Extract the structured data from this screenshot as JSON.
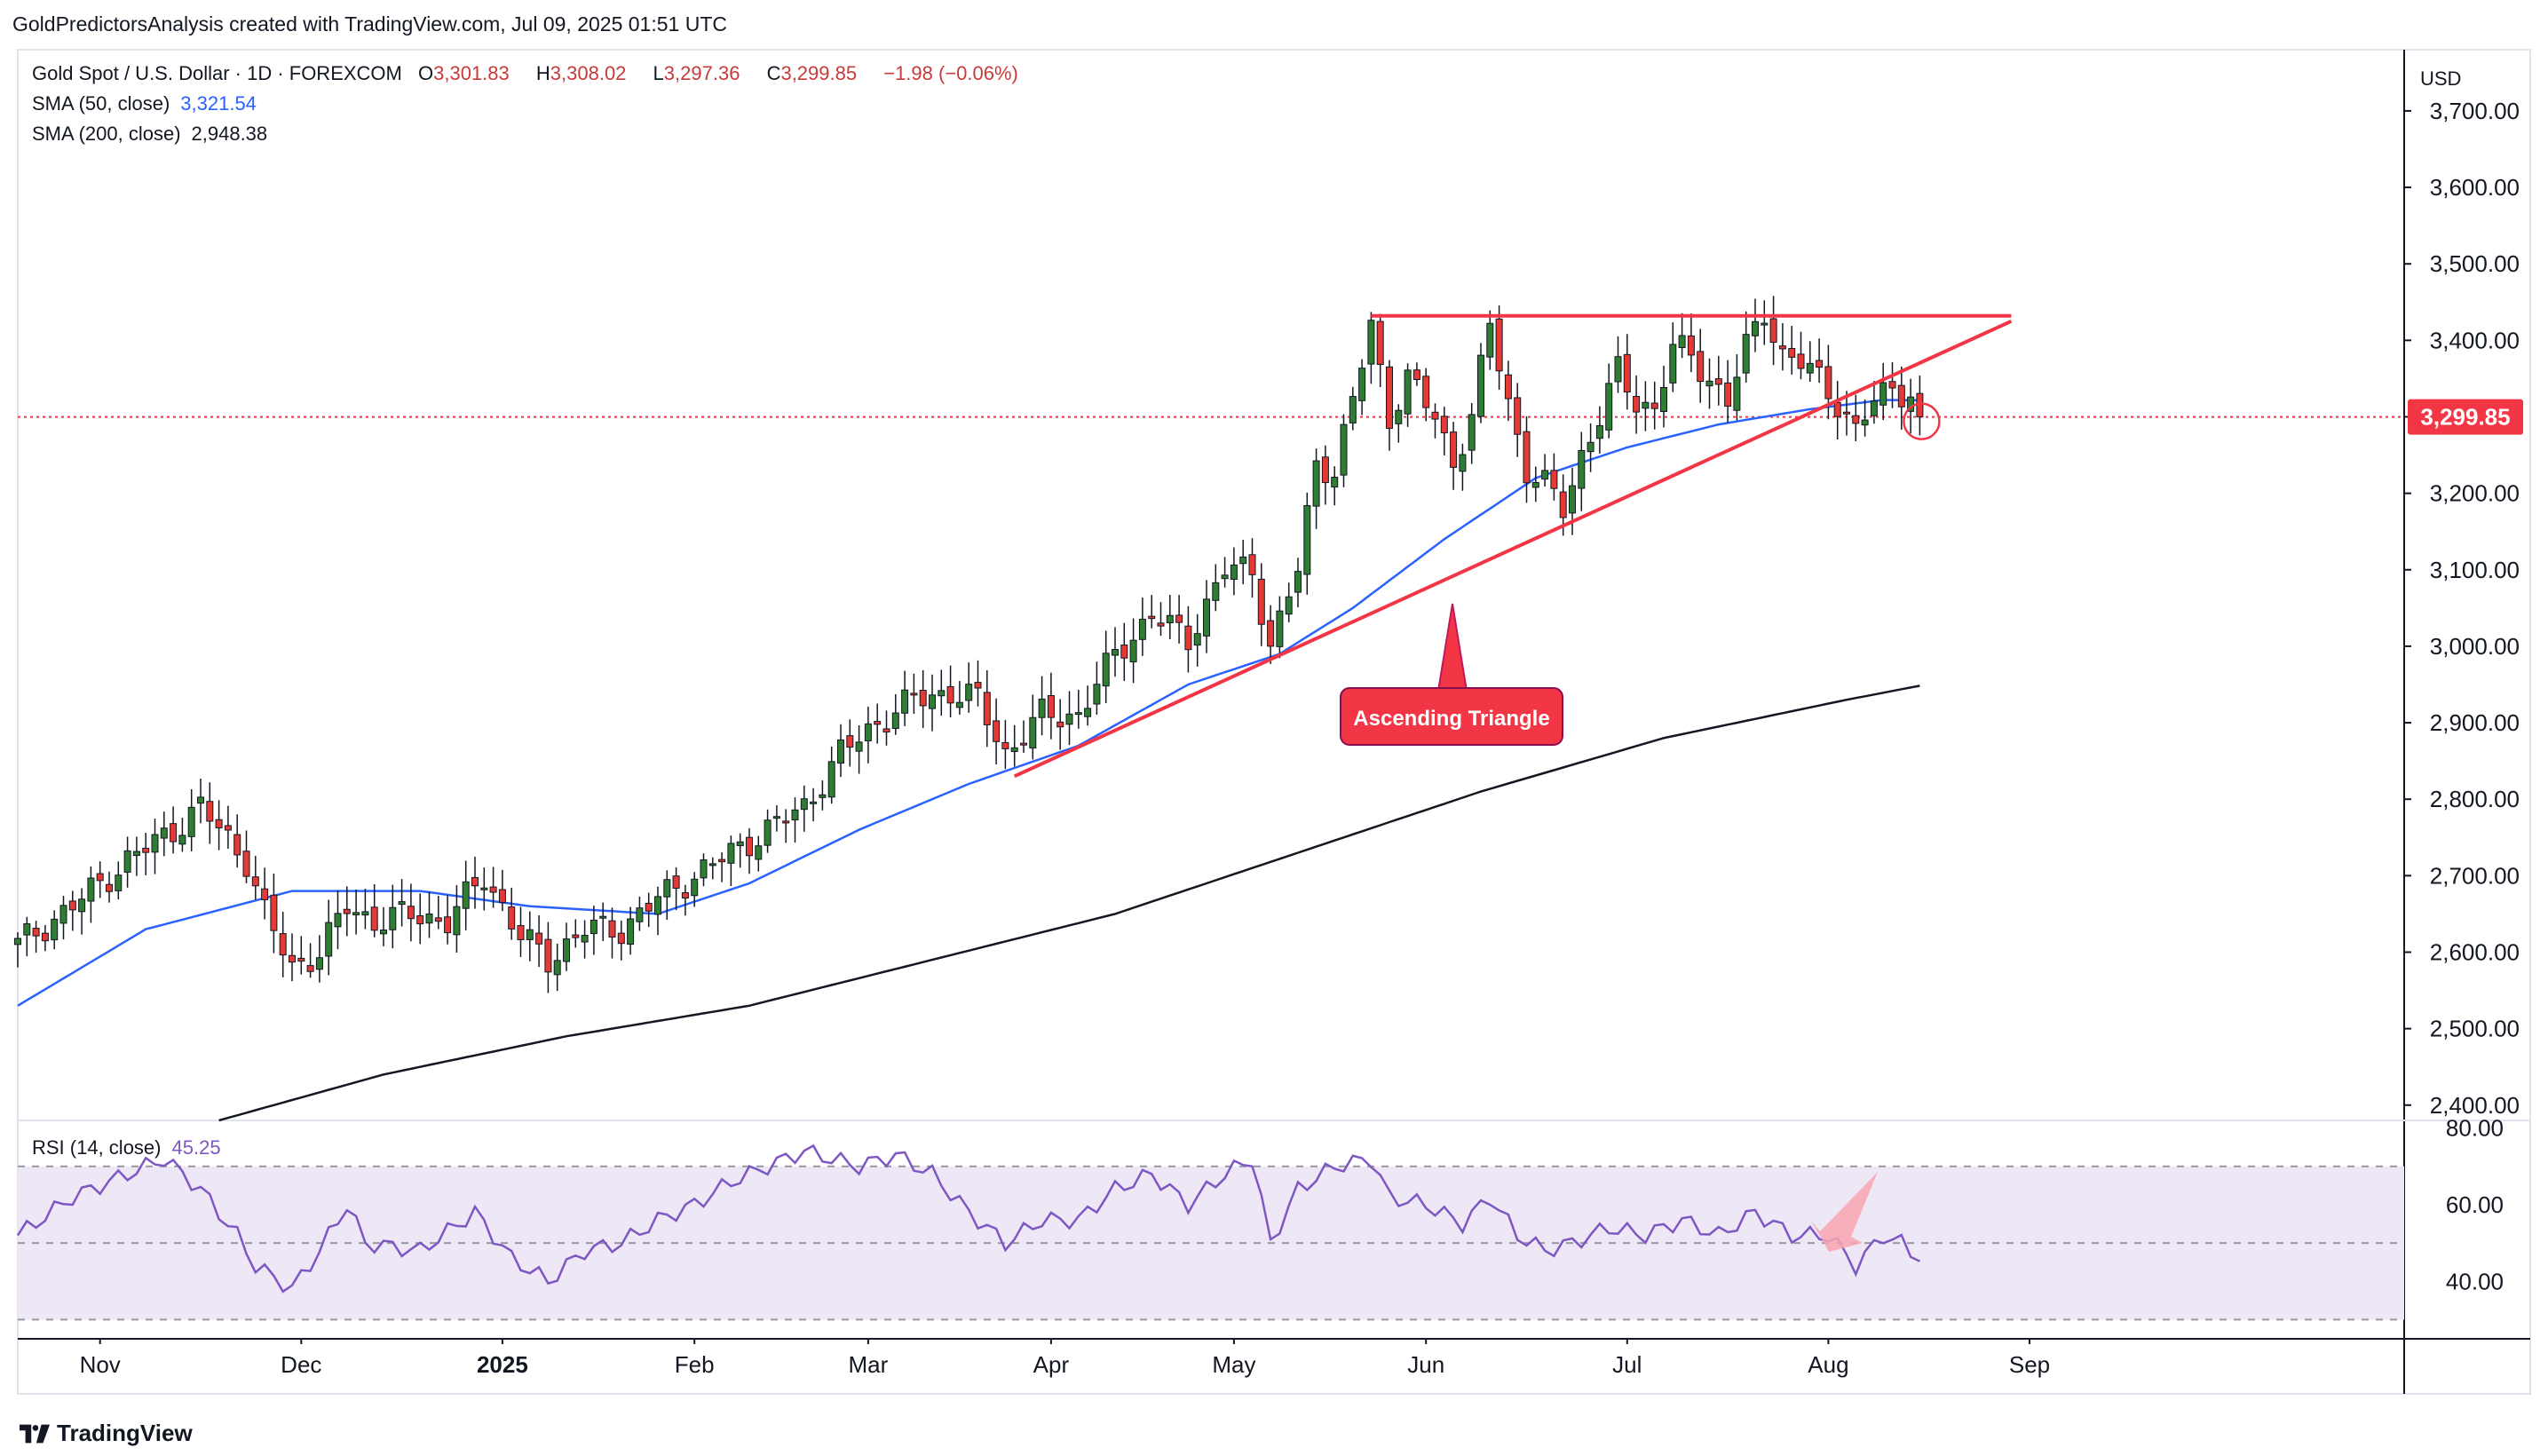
{
  "header": {
    "attribution": "GoldPredictorsAnalysis created with TradingView.com, Jul 09, 2025 01:51 UTC"
  },
  "legend": {
    "symbol": "Gold Spot / U.S. Dollar · 1D · FOREXCOM",
    "open_key": "O",
    "open": "3,301.83",
    "high_key": "H",
    "high": "3,308.02",
    "low_key": "L",
    "low": "3,297.36",
    "close_key": "C",
    "close": "3,299.85",
    "change": "−1.98 (−0.06%)",
    "sma50_label": "SMA (50, close)",
    "sma50_value": "3,321.54",
    "sma200_label": "SMA (200, close)",
    "sma200_value": "2,948.38",
    "rsi_label": "RSI (14, close)",
    "rsi_value": "45.25"
  },
  "price_axis": {
    "currency": "USD",
    "ticks": [
      "3,700.00",
      "3,600.00",
      "3,500.00",
      "3,400.00",
      "3,300.00",
      "3,200.00",
      "3,100.00",
      "3,000.00",
      "2,900.00",
      "2,800.00",
      "2,700.00",
      "2,600.00",
      "2,500.00",
      "2,400.00"
    ],
    "last_price_label": "3,299.85"
  },
  "rsi_axis": {
    "ticks": [
      "80.00",
      "60.00",
      "40.00"
    ]
  },
  "time_axis": {
    "labels": [
      "Nov",
      "Dec",
      "2025",
      "Feb",
      "Mar",
      "Apr",
      "May",
      "Jun",
      "Jul",
      "Aug",
      "Sep"
    ]
  },
  "annotation": {
    "label": "Ascending Triangle"
  },
  "footer": {
    "brand": "TradingView"
  },
  "colors": {
    "up": "#26a69a",
    "up_body": "#2e7d32",
    "down": "#e53935",
    "sma50": "#2962ff",
    "sma200": "#131722",
    "trend": "#f23645",
    "rsi_line": "#7e57c2",
    "rsi_band": "#ede7f6",
    "last_price": "#f23645"
  },
  "chart_data": {
    "type": "candlestick",
    "title": "Gold Spot / U.S. Dollar · 1D · FOREXCOM",
    "ylim": [
      2380,
      3780
    ],
    "y_scale": "linear",
    "last_price": 3299.85,
    "x_months": [
      "Nov",
      "Dec",
      "2025",
      "Feb",
      "Mar",
      "Apr",
      "May",
      "Jun",
      "Jul",
      "Aug",
      "Sep"
    ],
    "price_keypoints": [
      {
        "t": 0,
        "p": 2610
      },
      {
        "t": 6,
        "p": 2660
      },
      {
        "t": 12,
        "p": 2720
      },
      {
        "t": 17,
        "p": 2760
      },
      {
        "t": 20,
        "p": 2790
      },
      {
        "t": 25,
        "p": 2720
      },
      {
        "t": 27,
        "p": 2650
      },
      {
        "t": 30,
        "p": 2580
      },
      {
        "t": 33,
        "p": 2600
      },
      {
        "t": 36,
        "p": 2660
      },
      {
        "t": 39,
        "p": 2640
      },
      {
        "t": 43,
        "p": 2650
      },
      {
        "t": 47,
        "p": 2640
      },
      {
        "t": 51,
        "p": 2700
      },
      {
        "t": 55,
        "p": 2620
      },
      {
        "t": 58,
        "p": 2590
      },
      {
        "t": 62,
        "p": 2630
      },
      {
        "t": 66,
        "p": 2630
      },
      {
        "t": 70,
        "p": 2670
      },
      {
        "t": 74,
        "p": 2700
      },
      {
        "t": 78,
        "p": 2730
      },
      {
        "t": 82,
        "p": 2760
      },
      {
        "t": 86,
        "p": 2790
      },
      {
        "t": 90,
        "p": 2860
      },
      {
        "t": 94,
        "p": 2900
      },
      {
        "t": 98,
        "p": 2930
      },
      {
        "t": 102,
        "p": 2940
      },
      {
        "t": 105,
        "p": 2930
      },
      {
        "t": 108,
        "p": 2860
      },
      {
        "t": 112,
        "p": 2910
      },
      {
        "t": 116,
        "p": 2910
      },
      {
        "t": 120,
        "p": 2990
      },
      {
        "t": 124,
        "p": 3040
      },
      {
        "t": 128,
        "p": 3010
      },
      {
        "t": 132,
        "p": 3100
      },
      {
        "t": 135,
        "p": 3100
      },
      {
        "t": 137,
        "p": 3000
      },
      {
        "t": 140,
        "p": 3100
      },
      {
        "t": 142,
        "p": 3240
      },
      {
        "t": 144,
        "p": 3230
      },
      {
        "t": 146,
        "p": 3320
      },
      {
        "t": 148,
        "p": 3420
      },
      {
        "t": 150,
        "p": 3300
      },
      {
        "t": 152,
        "p": 3350
      },
      {
        "t": 155,
        "p": 3300
      },
      {
        "t": 157,
        "p": 3240
      },
      {
        "t": 159,
        "p": 3300
      },
      {
        "t": 161,
        "p": 3420
      },
      {
        "t": 163,
        "p": 3320
      },
      {
        "t": 165,
        "p": 3230
      },
      {
        "t": 167,
        "p": 3210
      },
      {
        "t": 169,
        "p": 3180
      },
      {
        "t": 171,
        "p": 3250
      },
      {
        "t": 173,
        "p": 3300
      },
      {
        "t": 175,
        "p": 3360
      },
      {
        "t": 177,
        "p": 3320
      },
      {
        "t": 179,
        "p": 3310
      },
      {
        "t": 181,
        "p": 3390
      },
      {
        "t": 183,
        "p": 3380
      },
      {
        "t": 185,
        "p": 3350
      },
      {
        "t": 187,
        "p": 3320
      },
      {
        "t": 189,
        "p": 3390
      },
      {
        "t": 191,
        "p": 3440
      },
      {
        "t": 193,
        "p": 3380
      },
      {
        "t": 195,
        "p": 3370
      },
      {
        "t": 197,
        "p": 3350
      },
      {
        "t": 199,
        "p": 3320
      },
      {
        "t": 201,
        "p": 3280
      },
      {
        "t": 203,
        "p": 3320
      },
      {
        "t": 205,
        "p": 3340
      },
      {
        "t": 207,
        "p": 3330
      },
      {
        "t": 208,
        "p": 3300
      }
    ],
    "sma50_keypoints": [
      {
        "t": 0,
        "p": 2530
      },
      {
        "t": 14,
        "p": 2630
      },
      {
        "t": 30,
        "p": 2680
      },
      {
        "t": 44,
        "p": 2680
      },
      {
        "t": 56,
        "p": 2660
      },
      {
        "t": 70,
        "p": 2650
      },
      {
        "t": 80,
        "p": 2690
      },
      {
        "t": 92,
        "p": 2760
      },
      {
        "t": 104,
        "p": 2820
      },
      {
        "t": 116,
        "p": 2870
      },
      {
        "t": 128,
        "p": 2950
      },
      {
        "t": 138,
        "p": 2990
      },
      {
        "t": 146,
        "p": 3050
      },
      {
        "t": 156,
        "p": 3140
      },
      {
        "t": 166,
        "p": 3220
      },
      {
        "t": 176,
        "p": 3260
      },
      {
        "t": 186,
        "p": 3290
      },
      {
        "t": 196,
        "p": 3310
      },
      {
        "t": 204,
        "p": 3322
      },
      {
        "t": 208,
        "p": 3321.54
      }
    ],
    "sma200_keypoints": [
      {
        "t": 22,
        "p": 2380
      },
      {
        "t": 40,
        "p": 2440
      },
      {
        "t": 60,
        "p": 2490
      },
      {
        "t": 80,
        "p": 2530
      },
      {
        "t": 100,
        "p": 2590
      },
      {
        "t": 120,
        "p": 2650
      },
      {
        "t": 140,
        "p": 2730
      },
      {
        "t": 160,
        "p": 2810
      },
      {
        "t": 180,
        "p": 2880
      },
      {
        "t": 200,
        "p": 2930
      },
      {
        "t": 208,
        "p": 2948.38
      }
    ],
    "rsi_keypoints": [
      {
        "t": 0,
        "v": 52
      },
      {
        "t": 6,
        "v": 62
      },
      {
        "t": 12,
        "v": 68
      },
      {
        "t": 16,
        "v": 72
      },
      {
        "t": 20,
        "v": 64
      },
      {
        "t": 24,
        "v": 52
      },
      {
        "t": 26,
        "v": 44
      },
      {
        "t": 30,
        "v": 38
      },
      {
        "t": 33,
        "v": 48
      },
      {
        "t": 36,
        "v": 60
      },
      {
        "t": 38,
        "v": 50
      },
      {
        "t": 44,
        "v": 48
      },
      {
        "t": 50,
        "v": 58
      },
      {
        "t": 54,
        "v": 46
      },
      {
        "t": 58,
        "v": 40
      },
      {
        "t": 62,
        "v": 48
      },
      {
        "t": 66,
        "v": 50
      },
      {
        "t": 70,
        "v": 56
      },
      {
        "t": 74,
        "v": 60
      },
      {
        "t": 78,
        "v": 66
      },
      {
        "t": 82,
        "v": 70
      },
      {
        "t": 86,
        "v": 74
      },
      {
        "t": 92,
        "v": 70
      },
      {
        "t": 96,
        "v": 73
      },
      {
        "t": 100,
        "v": 68
      },
      {
        "t": 104,
        "v": 58
      },
      {
        "t": 108,
        "v": 50
      },
      {
        "t": 112,
        "v": 56
      },
      {
        "t": 116,
        "v": 56
      },
      {
        "t": 120,
        "v": 64
      },
      {
        "t": 124,
        "v": 68
      },
      {
        "t": 128,
        "v": 60
      },
      {
        "t": 132,
        "v": 68
      },
      {
        "t": 135,
        "v": 72
      },
      {
        "t": 137,
        "v": 50
      },
      {
        "t": 140,
        "v": 64
      },
      {
        "t": 144,
        "v": 70
      },
      {
        "t": 148,
        "v": 72
      },
      {
        "t": 150,
        "v": 62
      },
      {
        "t": 154,
        "v": 60
      },
      {
        "t": 158,
        "v": 55
      },
      {
        "t": 161,
        "v": 62
      },
      {
        "t": 164,
        "v": 52
      },
      {
        "t": 167,
        "v": 48
      },
      {
        "t": 170,
        "v": 50
      },
      {
        "t": 174,
        "v": 54
      },
      {
        "t": 178,
        "v": 52
      },
      {
        "t": 182,
        "v": 56
      },
      {
        "t": 186,
        "v": 52
      },
      {
        "t": 190,
        "v": 58
      },
      {
        "t": 194,
        "v": 52
      },
      {
        "t": 198,
        "v": 52
      },
      {
        "t": 201,
        "v": 44
      },
      {
        "t": 204,
        "v": 52
      },
      {
        "t": 206,
        "v": 50
      },
      {
        "t": 208,
        "v": 45.25
      }
    ],
    "rsi_levels": {
      "upper": 70,
      "middle": 50,
      "lower": 30
    },
    "rsi_ylim": [
      25,
      82
    ],
    "resistance_line": {
      "t_start": 148,
      "t_end": 218,
      "p": 3432
    },
    "support_line": {
      "t_start": 109,
      "p_start": 2830,
      "t_end": 218,
      "p_end": 3425
    }
  }
}
